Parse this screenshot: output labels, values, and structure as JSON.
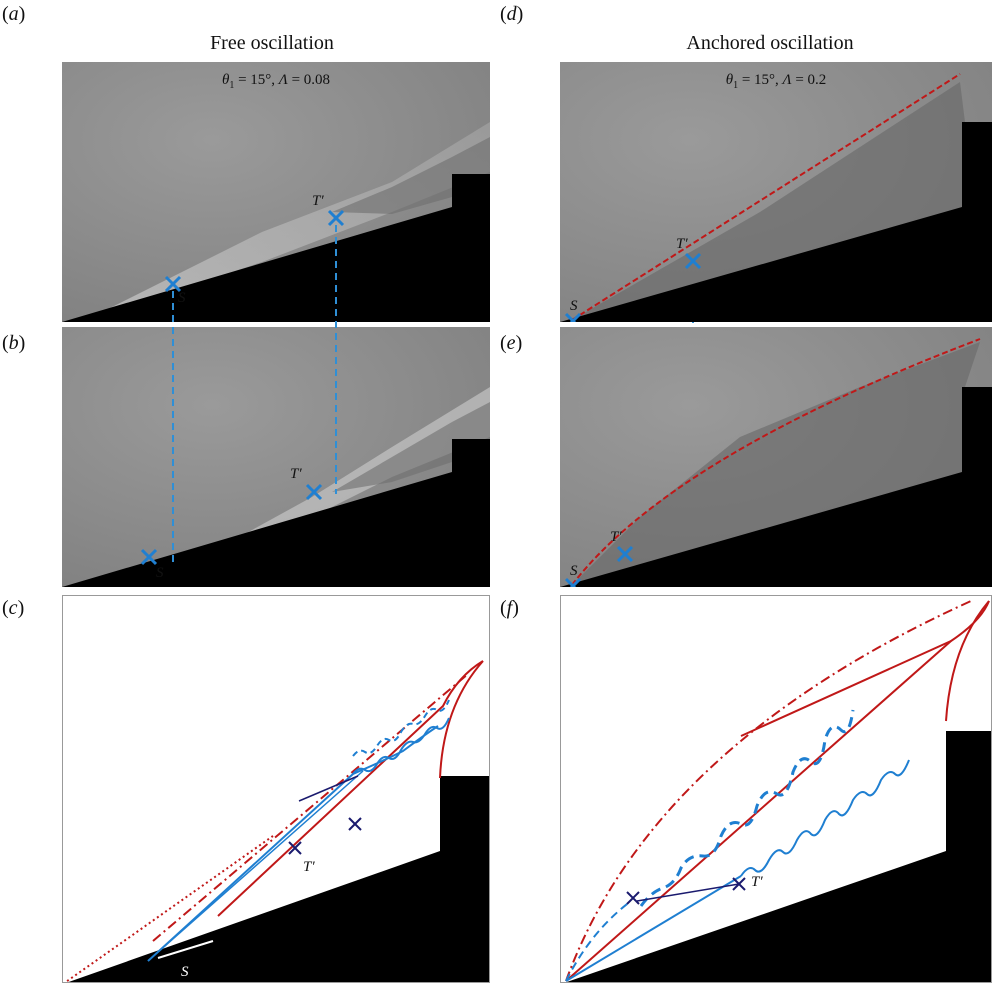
{
  "column_titles": {
    "left": "Free oscillation",
    "right": "Anchored oscillation"
  },
  "panel_labels": {
    "a": "a",
    "b": "b",
    "c": "c",
    "d": "d",
    "e": "e",
    "f": "f"
  },
  "params": {
    "left": {
      "theta_symbol": "θ",
      "theta_sub": "1",
      "theta_value": " = 15°, ",
      "lambda_symbol": "Λ",
      "lambda_value": " = 0.08"
    },
    "right": {
      "theta_symbol": "θ",
      "theta_sub": "1",
      "theta_value": " = 15°, ",
      "lambda_symbol": "Λ",
      "lambda_value": " = 0.2"
    }
  },
  "markers": {
    "separation": "S",
    "transition": "T′"
  },
  "colors": {
    "marker_blue": "#1f7fd1",
    "dashed_blue": "#2f8fd6",
    "shock_red": "#c01818",
    "dark_navy": "#1a1a6e",
    "background_gray": "#8c8c8c",
    "wall_black": "#000000"
  }
}
